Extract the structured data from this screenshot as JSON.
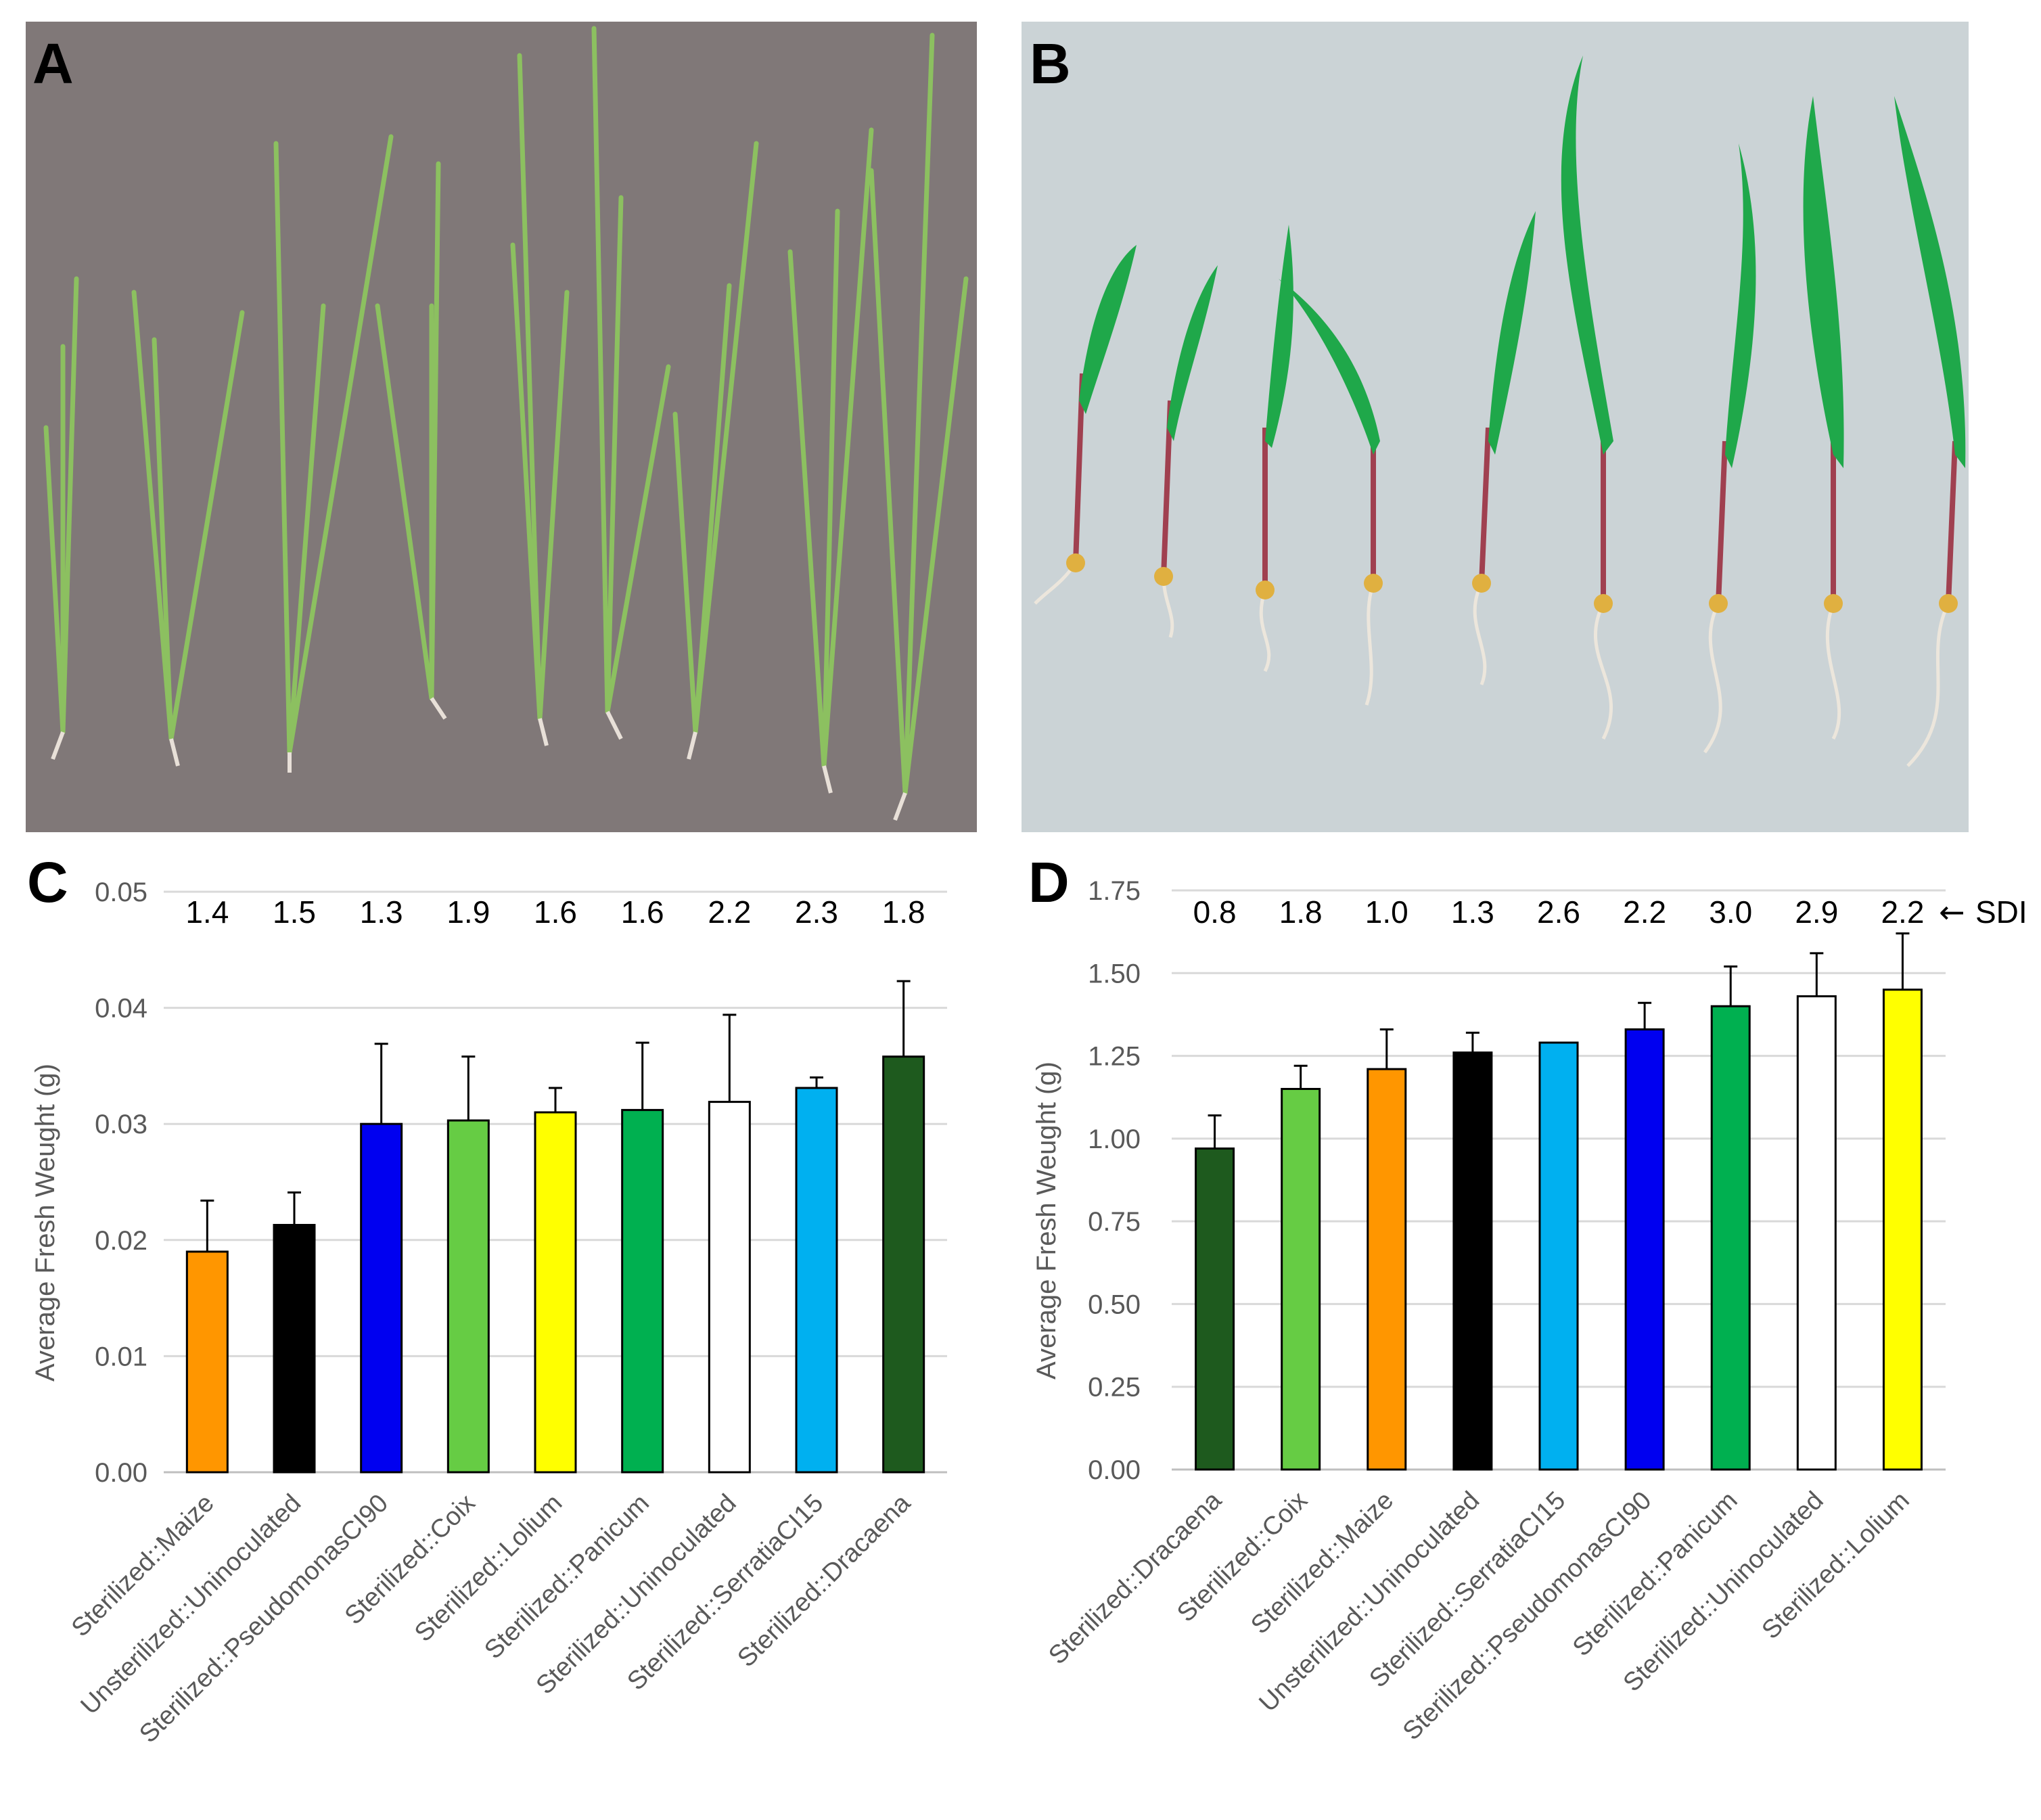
{
  "panels": {
    "a": {
      "letter": "A",
      "description_icon": "rice-seedlings-photo"
    },
    "b": {
      "letter": "B",
      "description_icon": "maize-seedlings-photo"
    },
    "c": {
      "letter": "C"
    },
    "d": {
      "letter": "D"
    }
  },
  "sdi_marker": {
    "arrow": "←",
    "label": "SDI"
  },
  "colors": {
    "orange": "#ff9600",
    "black": "#000000",
    "blue": "#0000f0",
    "lightgreen": "#66cc44",
    "yellow": "#ffff00",
    "green": "#00b050",
    "white": "#ffffff",
    "skyblue": "#00b0f0",
    "darkgreen": "#1e5a1e",
    "photo_a_bg": "#807878",
    "photo_b_bg": "#cbd3d6"
  },
  "chart_data": [
    {
      "type": "bar",
      "panel": "C",
      "ylabel": "Average Fresh Weught (g)",
      "ylim": [
        0,
        0.05
      ],
      "yticks": [
        "0.00",
        "0.01",
        "0.02",
        "0.03",
        "0.04",
        "0.05"
      ],
      "ytick_values": [
        0,
        0.01,
        0.02,
        0.03,
        0.04,
        0.05
      ],
      "categories": [
        "Sterilized::Maize",
        "Unsterilized::Uninoculated",
        "Sterilized::PseudomonasCI90",
        "Sterilized::Coix",
        "Sterilized::Lolium",
        "Sterilized::Panicum",
        "Sterilized::Uninoculated",
        "Sterilized::SerratiaCI15",
        "Sterilized::Dracaena"
      ],
      "values": [
        0.019,
        0.0213,
        0.03,
        0.0303,
        0.031,
        0.0312,
        0.0319,
        0.0331,
        0.0358
      ],
      "errors": [
        0.0044,
        0.0028,
        0.0069,
        0.0055,
        0.0021,
        0.0058,
        0.0075,
        0.0009,
        0.0065
      ],
      "bar_colors": [
        "#ff9600",
        "#000000",
        "#0000f0",
        "#66cc44",
        "#ffff00",
        "#00b050",
        "#ffffff",
        "#00b0f0",
        "#1e5a1e"
      ],
      "sdi": [
        "1.4",
        "1.5",
        "1.3",
        "1.9",
        "1.6",
        "1.6",
        "2.2",
        "2.3",
        "1.8"
      ]
    },
    {
      "type": "bar",
      "panel": "D",
      "ylabel": "Average Fresh Weught (g)",
      "ylim": [
        0,
        1.75
      ],
      "yticks": [
        "0.00",
        "0.25",
        "0.50",
        "0.75",
        "1.00",
        "1.25",
        "1.50",
        "1.75"
      ],
      "ytick_values": [
        0,
        0.25,
        0.5,
        0.75,
        1.0,
        1.25,
        1.5,
        1.75
      ],
      "categories": [
        "Sterilized::Dracaena",
        "Sterilized::Coix",
        "Sterilized::Maize",
        "Unsterilized::Uninoculated",
        "Sterilized::SerratiaCI15",
        "Sterilized::PseudomonasCI90",
        "Sterilized::Panicum",
        "Sterilized::Uninoculated",
        "Sterilized::Lolium"
      ],
      "values": [
        0.97,
        1.15,
        1.21,
        1.26,
        1.29,
        1.33,
        1.4,
        1.43,
        1.45
      ],
      "errors": [
        0.1,
        0.07,
        0.12,
        0.06,
        0.0,
        0.08,
        0.12,
        0.13,
        0.17
      ],
      "bar_colors": [
        "#1e5a1e",
        "#66cc44",
        "#ff9600",
        "#000000",
        "#00b0f0",
        "#0000f0",
        "#00b050",
        "#ffffff",
        "#ffff00"
      ],
      "sdi": [
        "0.8",
        "1.8",
        "1.0",
        "1.3",
        "2.6",
        "2.2",
        "3.0",
        "2.9",
        "2.2"
      ]
    }
  ]
}
